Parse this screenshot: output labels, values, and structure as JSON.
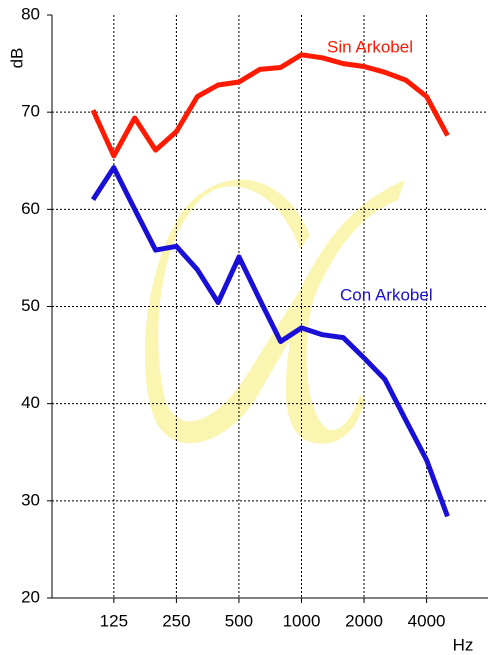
{
  "chart_data": {
    "type": "line",
    "y_label": "dB",
    "x_label": "Hz",
    "categories": [
      null,
      "125",
      null,
      null,
      "250",
      null,
      null,
      "500",
      null,
      null,
      "1000",
      null,
      null,
      "2000",
      null,
      null,
      "4000",
      null
    ],
    "series": [
      {
        "name": "Sin Arkobel",
        "color": "#ff1a00",
        "values": [
          70.2,
          65.5,
          69.4,
          66.1,
          68.0,
          71.6,
          72.8,
          73.1,
          74.4,
          74.6,
          75.9,
          75.6,
          75.0,
          74.7,
          74.1,
          73.3,
          71.6,
          67.6
        ]
      },
      {
        "name": "Con Arkobel",
        "color": "#1a0fd6",
        "values": [
          61.0,
          64.3,
          60.0,
          55.8,
          56.2,
          53.8,
          50.4,
          55.1,
          50.7,
          46.4,
          47.8,
          47.1,
          46.8,
          44.7,
          42.5,
          38.3,
          34.2,
          28.4
        ]
      }
    ],
    "ylim": [
      20,
      80
    ],
    "yticks": [
      20,
      30,
      40,
      50,
      60,
      70,
      80
    ],
    "grid": true
  }
}
